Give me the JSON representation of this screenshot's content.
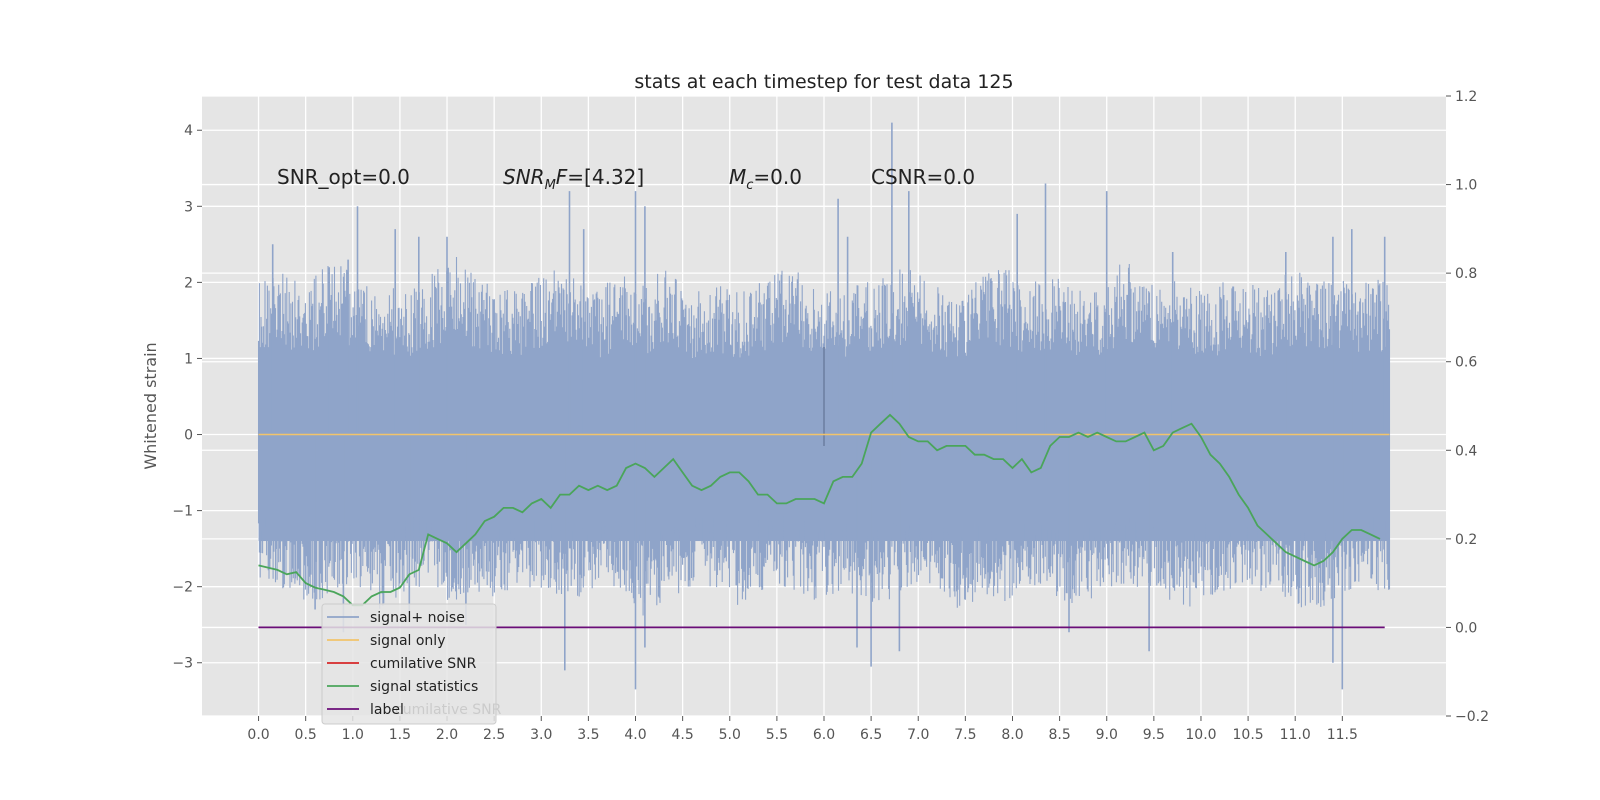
{
  "chart_data": {
    "type": "line",
    "title": "stats at each timestep for test data 125",
    "ylabel": "Whitened strain",
    "xlim": [
      -0.6,
      12.6
    ],
    "ylim": [
      -3.7,
      4.45
    ],
    "y2lim": [
      -0.2,
      1.2
    ],
    "grid": true,
    "legend_placement": "lower-left",
    "x_ticks": [
      0.0,
      0.5,
      1.0,
      1.5,
      2.0,
      2.5,
      3.0,
      3.5,
      4.0,
      4.5,
      5.0,
      5.5,
      6.0,
      6.5,
      7.0,
      7.5,
      8.0,
      8.5,
      9.0,
      9.5,
      10.0,
      10.5,
      11.0,
      11.5
    ],
    "x_tick_labels": [
      "0.0",
      "0.5",
      "1.0",
      "1.5",
      "2.0",
      "2.5",
      "3.0",
      "3.5",
      "4.0",
      "4.5",
      "5.0",
      "5.5",
      "6.0",
      "6.5",
      "7.0",
      "7.5",
      "8.0",
      "8.5",
      "9.0",
      "9.5",
      "10.0",
      "10.5",
      "11.0",
      "11.5"
    ],
    "y_ticks": [
      -3,
      -2,
      -1,
      0,
      1,
      2,
      3,
      4
    ],
    "y_tick_labels": [
      "−3",
      "−2",
      "−1",
      "0",
      "1",
      "2",
      "3",
      "4"
    ],
    "y2_ticks": [
      -0.2,
      0.0,
      0.2,
      0.4,
      0.6,
      0.8,
      1.0,
      1.2
    ],
    "y2_tick_labels": [
      "−0.2",
      "0.0",
      "0.2",
      "0.4",
      "0.6",
      "0.8",
      "1.0",
      "1.2"
    ],
    "annotations": {
      "snr_opt": "SNR_opt=0.0",
      "snr_mf_main": "SNR",
      "snr_mf_sub": "M",
      "snr_mf_tail": "F",
      "snr_mf_value": "=[4.32]",
      "mc_main": "M",
      "mc_sub": "c",
      "mc_value": "=0.0",
      "csnr": "CSNR=0.0"
    },
    "series": [
      {
        "name": "signal+ noise",
        "color": "#8fa4c9",
        "axis": "left",
        "x_range": [
          0.0,
          12.0
        ],
        "envelope_upper": [
          1.9,
          2.1,
          1.9,
          2.2,
          2.0,
          1.9,
          1.8,
          2.0,
          2.3,
          2.0,
          1.8,
          1.9,
          2.1,
          2.0,
          1.8,
          2.0,
          1.9,
          2.1,
          1.8,
          1.9,
          1.8,
          2.0,
          2.2,
          1.9,
          1.8,
          1.9,
          2.0,
          2.1,
          1.9,
          1.8,
          2.0,
          2.1,
          1.9,
          2.0,
          1.8,
          1.9,
          2.2,
          1.9,
          2.0,
          1.8,
          1.9,
          2.0,
          1.8,
          2.1,
          1.9,
          2.0,
          1.9,
          2.0
        ],
        "envelope_lower": [
          -1.8,
          -2.0,
          -2.2,
          -2.1,
          -1.9,
          -2.2,
          -2.0,
          -1.9,
          -2.1,
          -2.0,
          -2.2,
          -1.9,
          -2.0,
          -2.1,
          -1.9,
          -2.0,
          -2.3,
          -2.1,
          -1.9,
          -2.0,
          -2.2,
          -2.0,
          -1.9,
          -2.1,
          -2.0,
          -2.1,
          -2.2,
          -1.9,
          -2.0,
          -2.3,
          -2.0,
          -2.1,
          -1.9,
          -2.0,
          -2.2,
          -2.1,
          -2.0,
          -1.9,
          -2.1,
          -2.2,
          -2.0,
          -1.9,
          -2.0,
          -2.1,
          -2.3,
          -2.0,
          -1.9,
          -2.0
        ],
        "spikes": [
          [
            0.15,
            2.5
          ],
          [
            0.75,
            2.2
          ],
          [
            0.95,
            2.3
          ],
          [
            1.05,
            3.0
          ],
          [
            1.45,
            2.7
          ],
          [
            1.7,
            2.6
          ],
          [
            2.0,
            2.6
          ],
          [
            3.3,
            3.2
          ],
          [
            3.45,
            2.7
          ],
          [
            4.0,
            3.2
          ],
          [
            4.1,
            3.0
          ],
          [
            6.15,
            3.1
          ],
          [
            6.25,
            2.6
          ],
          [
            6.72,
            4.1
          ],
          [
            6.9,
            3.2
          ],
          [
            8.05,
            2.9
          ],
          [
            8.35,
            3.3
          ],
          [
            9.0,
            3.2
          ],
          [
            9.7,
            2.4
          ],
          [
            10.9,
            2.4
          ],
          [
            11.4,
            2.6
          ],
          [
            11.6,
            2.7
          ],
          [
            11.95,
            2.6
          ],
          [
            0.9,
            -2.6
          ],
          [
            1.6,
            -2.4
          ],
          [
            3.25,
            -3.1
          ],
          [
            4.0,
            -3.35
          ],
          [
            4.1,
            -2.8
          ],
          [
            6.35,
            -2.8
          ],
          [
            6.5,
            -3.05
          ],
          [
            6.8,
            -2.85
          ],
          [
            9.45,
            -2.85
          ],
          [
            11.4,
            -3.0
          ],
          [
            11.5,
            -3.35
          ],
          [
            0.6,
            -2.3
          ],
          [
            2.2,
            -2.5
          ],
          [
            8.6,
            -2.6
          ]
        ]
      },
      {
        "name": "signal only",
        "color": "#f2c46b",
        "axis": "left",
        "x": [
          0.0,
          12.0
        ],
        "y": [
          0.0,
          0.0
        ]
      },
      {
        "name": "cumilative SNR",
        "color": "#d62728",
        "axis": "right",
        "x": [],
        "y": []
      },
      {
        "name": "signal statistics",
        "color": "#4aa55a",
        "axis": "right",
        "x": [
          0.0,
          0.1,
          0.2,
          0.3,
          0.4,
          0.5,
          0.6,
          0.7,
          0.8,
          0.9,
          1.0,
          1.1,
          1.2,
          1.3,
          1.4,
          1.5,
          1.6,
          1.7,
          1.8,
          1.9,
          2.0,
          2.1,
          2.2,
          2.3,
          2.4,
          2.5,
          2.6,
          2.7,
          2.8,
          2.9,
          3.0,
          3.1,
          3.2,
          3.3,
          3.4,
          3.5,
          3.6,
          3.7,
          3.8,
          3.9,
          4.0,
          4.1,
          4.2,
          4.3,
          4.4,
          4.5,
          4.6,
          4.7,
          4.8,
          4.9,
          5.0,
          5.1,
          5.2,
          5.3,
          5.4,
          5.5,
          5.6,
          5.7,
          5.8,
          5.9,
          6.0,
          6.1,
          6.2,
          6.3,
          6.4,
          6.5,
          6.6,
          6.7,
          6.8,
          6.9,
          7.0,
          7.1,
          7.2,
          7.3,
          7.4,
          7.5,
          7.6,
          7.7,
          7.8,
          7.9,
          8.0,
          8.1,
          8.2,
          8.3,
          8.4,
          8.5,
          8.6,
          8.7,
          8.8,
          8.9,
          9.0,
          9.1,
          9.2,
          9.3,
          9.4,
          9.5,
          9.6,
          9.7,
          9.8,
          9.9,
          10.0,
          10.1,
          10.2,
          10.3,
          10.4,
          10.5,
          10.6,
          10.7,
          10.8,
          10.9,
          11.0,
          11.1,
          11.2,
          11.3,
          11.4,
          11.5,
          11.6,
          11.7,
          11.8,
          11.9
        ],
        "y": [
          0.14,
          0.135,
          0.13,
          0.12,
          0.125,
          0.1,
          0.09,
          0.085,
          0.08,
          0.07,
          0.05,
          0.05,
          0.07,
          0.08,
          0.08,
          0.09,
          0.12,
          0.13,
          0.21,
          0.2,
          0.19,
          0.17,
          0.19,
          0.21,
          0.24,
          0.25,
          0.27,
          0.27,
          0.26,
          0.28,
          0.29,
          0.27,
          0.3,
          0.3,
          0.32,
          0.31,
          0.32,
          0.31,
          0.32,
          0.36,
          0.37,
          0.36,
          0.34,
          0.36,
          0.38,
          0.35,
          0.32,
          0.31,
          0.32,
          0.34,
          0.35,
          0.35,
          0.33,
          0.3,
          0.3,
          0.28,
          0.28,
          0.29,
          0.29,
          0.29,
          0.28,
          0.33,
          0.34,
          0.34,
          0.37,
          0.44,
          0.46,
          0.48,
          0.46,
          0.43,
          0.42,
          0.42,
          0.4,
          0.41,
          0.41,
          0.41,
          0.39,
          0.39,
          0.38,
          0.38,
          0.36,
          0.38,
          0.35,
          0.36,
          0.41,
          0.43,
          0.43,
          0.44,
          0.43,
          0.44,
          0.43,
          0.42,
          0.42,
          0.43,
          0.44,
          0.4,
          0.41,
          0.44,
          0.45,
          0.46,
          0.43,
          0.39,
          0.37,
          0.34,
          0.3,
          0.27,
          0.23,
          0.21,
          0.19,
          0.17,
          0.16,
          0.15,
          0.14,
          0.15,
          0.17,
          0.2,
          0.22,
          0.22,
          0.21,
          0.2
        ]
      },
      {
        "name": "label",
        "color": "#6a0d78",
        "axis": "right",
        "x": [
          0.0,
          11.95
        ],
        "y": [
          0.0,
          0.0
        ]
      }
    ],
    "legend_ghost_text": "cumilative SNR"
  }
}
